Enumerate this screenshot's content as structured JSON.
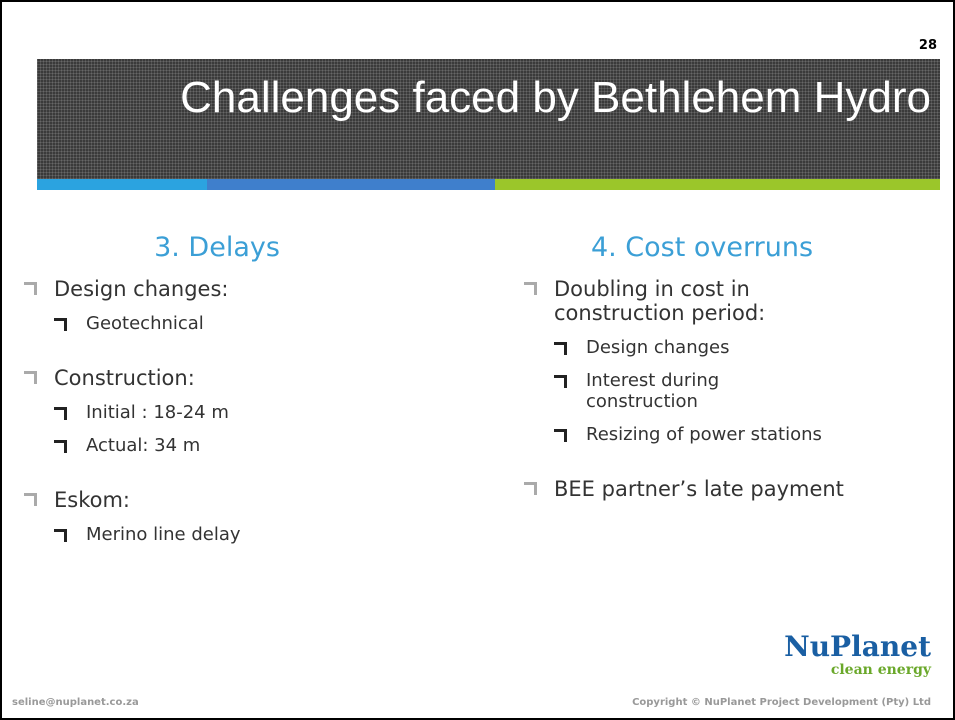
{
  "page_number": "28",
  "title": "Challenges faced by Bethlehem Hydro",
  "columns": [
    {
      "heading": "3. Delays",
      "items": [
        {
          "text": "Design changes:",
          "sub": [
            "Geotechnical"
          ]
        },
        {
          "text": "Construction:",
          "sub": [
            "Initial : 18-24 m",
            "Actual: 34 m"
          ]
        },
        {
          "text": "Eskom:",
          "sub": [
            "Merino line delay"
          ]
        }
      ]
    },
    {
      "heading": "4. Cost overruns",
      "items": [
        {
          "text": "Doubling in cost in construction period:",
          "sub": [
            "Design changes",
            "Interest during construction",
            "Resizing of power stations"
          ]
        },
        {
          "text": "BEE partner’s late payment",
          "sub": []
        }
      ]
    }
  ],
  "logo": {
    "name": "NuPlanet",
    "tagline": "clean energy"
  },
  "footer": {
    "email": "seline@nuplanet.co.za",
    "copyright": "Copyright © NuPlanet Project Development (Pty) Ltd"
  }
}
